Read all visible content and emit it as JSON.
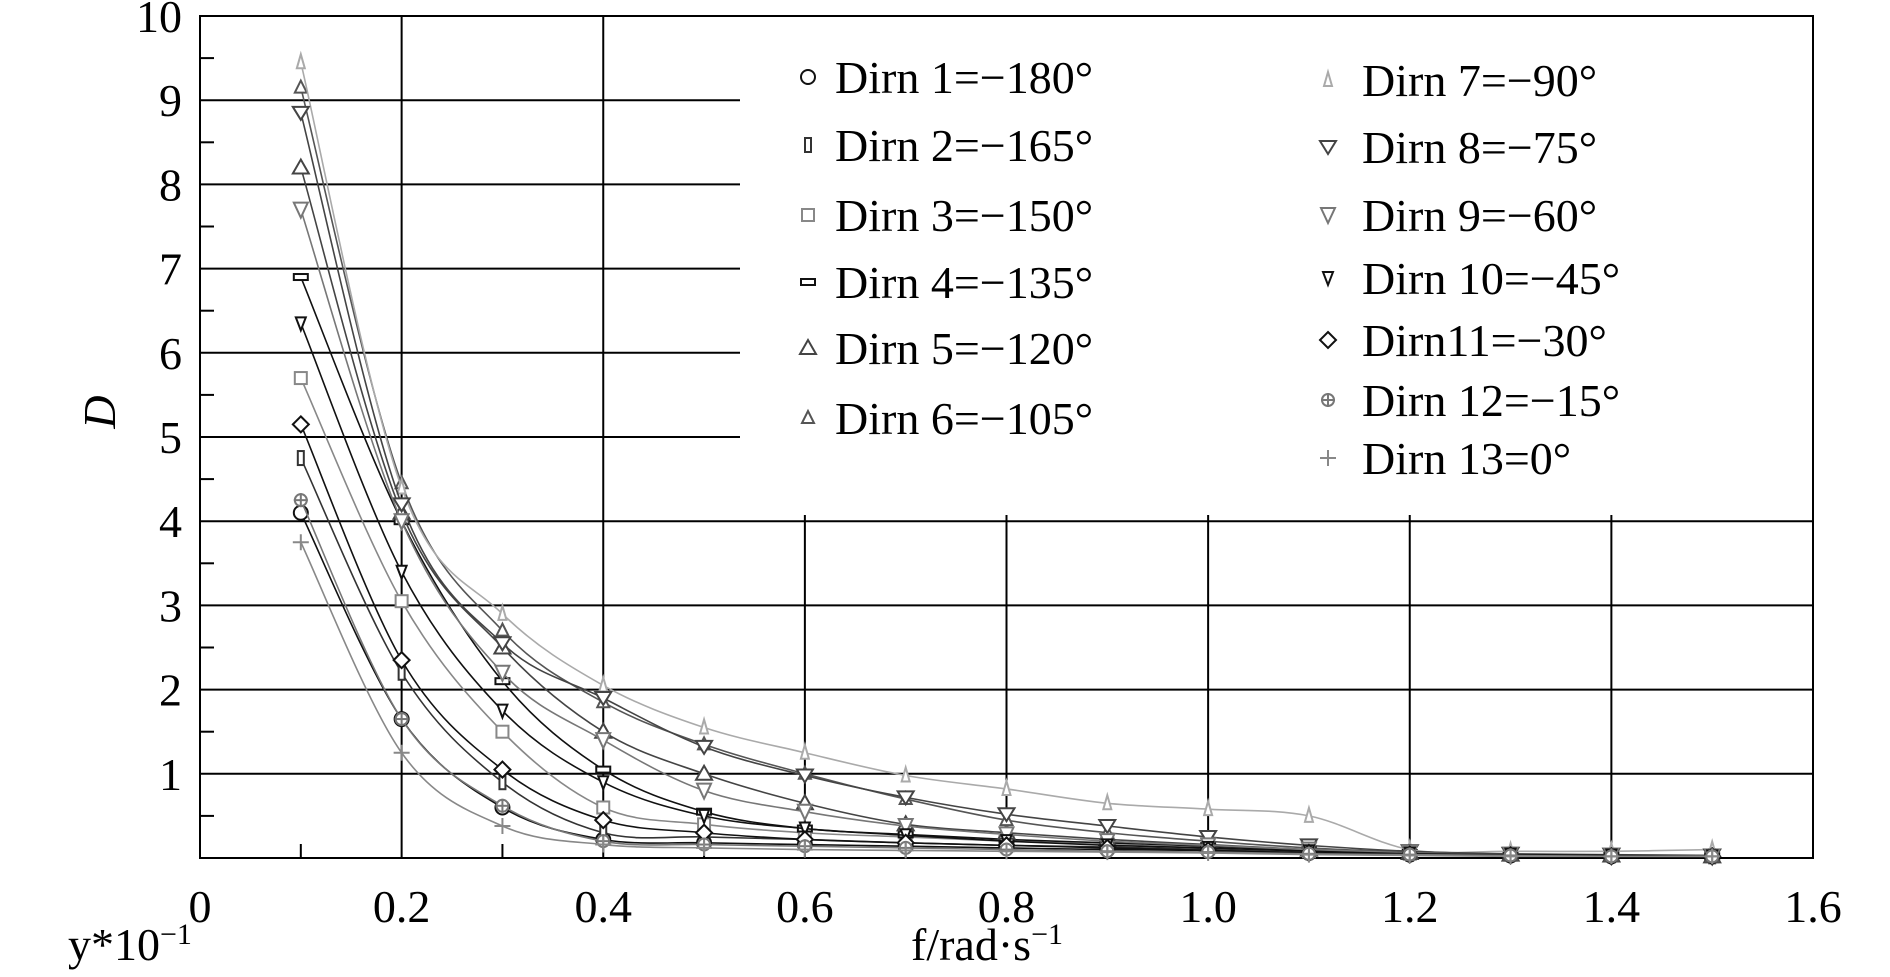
{
  "chart_data": {
    "type": "line",
    "xlabel": "f/rad·s",
    "xlabel_sup": "−1",
    "ylabel": "D",
    "yscale_note": "y*10",
    "yscale_sup": "−1",
    "xlim": [
      0,
      1.6
    ],
    "ylim": [
      0,
      10
    ],
    "x_ticks": [
      "0",
      "0.2",
      "0.4",
      "0.6",
      "0.8",
      "1.0",
      "1.2",
      "1.4",
      "1.6"
    ],
    "y_ticks": [
      "1",
      "2",
      "3",
      "4",
      "5",
      "6",
      "7",
      "8",
      "9",
      "10"
    ],
    "grid": true,
    "legend_position": "top-right",
    "x": [
      0.1,
      0.2,
      0.3,
      0.4,
      0.5,
      0.6,
      0.7,
      0.8,
      0.9,
      1.0,
      1.1,
      1.2,
      1.3,
      1.4,
      1.5
    ],
    "series": [
      {
        "name": "Dirn 1=−180°",
        "marker": "circle",
        "color": "#111111",
        "values": [
          4.1,
          1.65,
          0.6,
          0.22,
          0.18,
          0.16,
          0.14,
          0.12,
          0.1,
          0.09,
          0.06,
          0.04,
          0.03,
          0.02,
          0.02
        ]
      },
      {
        "name": "Dirn 2=−165°",
        "marker": "rect-v",
        "color": "#333333",
        "values": [
          4.75,
          2.2,
          0.9,
          0.3,
          0.25,
          0.22,
          0.18,
          0.15,
          0.13,
          0.1,
          0.07,
          0.05,
          0.04,
          0.03,
          0.02
        ]
      },
      {
        "name": "Dirn 3=−150°",
        "marker": "square",
        "color": "#888888",
        "values": [
          5.7,
          3.05,
          1.5,
          0.6,
          0.4,
          0.3,
          0.25,
          0.2,
          0.16,
          0.12,
          0.08,
          0.05,
          0.04,
          0.03,
          0.02
        ]
      },
      {
        "name": "Dirn 4=−135°",
        "marker": "rect-h",
        "color": "#111111",
        "values": [
          6.9,
          4.0,
          2.1,
          1.05,
          0.55,
          0.35,
          0.28,
          0.22,
          0.18,
          0.14,
          0.09,
          0.06,
          0.04,
          0.03,
          0.02
        ]
      },
      {
        "name": "Dirn 5=−120°",
        "marker": "triangle",
        "color": "#444444",
        "values": [
          8.2,
          4.1,
          2.5,
          1.5,
          1.0,
          0.65,
          0.4,
          0.3,
          0.22,
          0.16,
          0.1,
          0.06,
          0.04,
          0.03,
          0.02
        ]
      },
      {
        "name": "Dirn 6=−105°",
        "marker": "triangle-small",
        "color": "#555555",
        "values": [
          9.15,
          4.45,
          2.7,
          1.85,
          1.35,
          1.0,
          0.7,
          0.45,
          0.3,
          0.2,
          0.12,
          0.07,
          0.04,
          0.03,
          0.02
        ]
      },
      {
        "name": "Dirn 7=−90°",
        "marker": "triangle-light",
        "color": "#aaaaaa",
        "values": [
          9.45,
          4.4,
          2.9,
          2.05,
          1.55,
          1.25,
          0.98,
          0.82,
          0.65,
          0.58,
          0.5,
          0.1,
          0.08,
          0.08,
          0.1
        ]
      },
      {
        "name": "Dirn 8=−75°",
        "marker": "triangle-down",
        "color": "#444444",
        "values": [
          8.85,
          4.2,
          2.55,
          1.9,
          1.32,
          0.98,
          0.72,
          0.52,
          0.38,
          0.25,
          0.15,
          0.08,
          0.05,
          0.04,
          0.03
        ]
      },
      {
        "name": "Dirn 9=−60°",
        "marker": "triangle-down-light",
        "color": "#777777",
        "values": [
          7.7,
          4.0,
          2.2,
          1.4,
          0.8,
          0.55,
          0.38,
          0.28,
          0.2,
          0.15,
          0.1,
          0.06,
          0.04,
          0.03,
          0.02
        ]
      },
      {
        "name": "Dirn 10=−45°",
        "marker": "triangle-down-small",
        "color": "#111111",
        "values": [
          6.35,
          3.4,
          1.75,
          0.9,
          0.5,
          0.35,
          0.27,
          0.2,
          0.15,
          0.12,
          0.08,
          0.05,
          0.04,
          0.03,
          0.02
        ]
      },
      {
        "name": "Dirn11=−30°",
        "marker": "diamond",
        "color": "#111111",
        "values": [
          5.15,
          2.35,
          1.05,
          0.45,
          0.3,
          0.22,
          0.18,
          0.15,
          0.12,
          0.09,
          0.06,
          0.04,
          0.03,
          0.02,
          0.02
        ]
      },
      {
        "name": "Dirn 12=−15°",
        "marker": "star",
        "color": "#777777",
        "values": [
          4.25,
          1.65,
          0.62,
          0.2,
          0.16,
          0.14,
          0.12,
          0.1,
          0.08,
          0.07,
          0.05,
          0.04,
          0.03,
          0.02,
          0.02
        ]
      },
      {
        "name": "Dirn 13=0°",
        "marker": "plus",
        "color": "#888888",
        "values": [
          3.75,
          1.25,
          0.38,
          0.16,
          0.12,
          0.1,
          0.09,
          0.08,
          0.07,
          0.06,
          0.04,
          0.03,
          0.02,
          0.02,
          0.02
        ]
      }
    ]
  }
}
